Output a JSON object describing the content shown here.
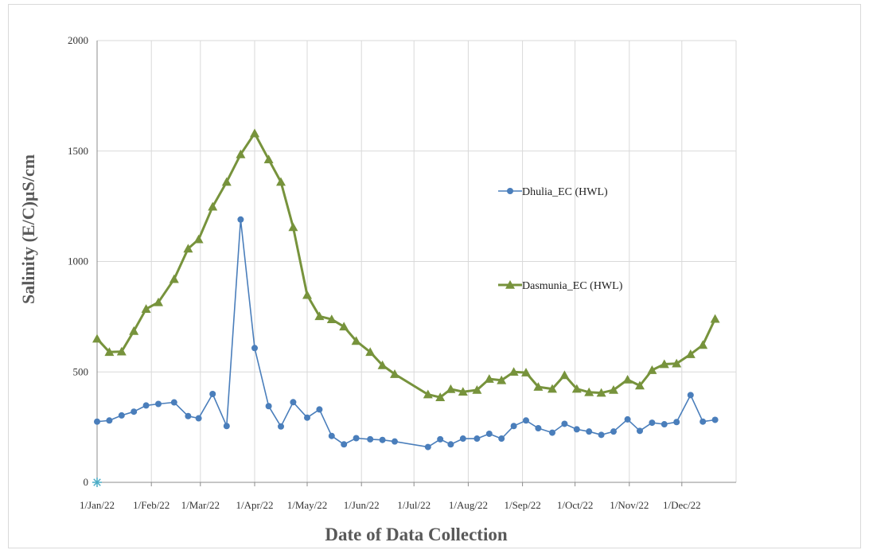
{
  "chart_data": {
    "type": "line",
    "xlabel": "Date of Data Collection",
    "ylabel": "Salinity (E/C)µS/cm",
    "ylim": [
      0,
      2000
    ],
    "yticks": [
      0,
      500,
      1000,
      1500,
      2000
    ],
    "xlim": [
      "2022-01-01",
      "2023-01-01"
    ],
    "x_tick_labels": [
      "1/Jan/22",
      "1/Feb/22",
      "1/Mar/22",
      "1/Apr/22",
      "1/May/22",
      "1/Jun/22",
      "1/Jul/22",
      "1/Aug/22",
      "1/Sep/22",
      "1/Oct/22",
      "1/Nov/22",
      "1/Dec/22"
    ],
    "x_tick_dates": [
      "2022-01-01",
      "2022-02-01",
      "2022-03-01",
      "2022-04-01",
      "2022-05-01",
      "2022-06-01",
      "2022-07-01",
      "2022-08-01",
      "2022-09-01",
      "2022-10-01",
      "2022-11-01",
      "2022-12-01"
    ],
    "grid": true,
    "legend": "right",
    "series": [
      {
        "name": "Dhulia_EC (HWL)",
        "color": "#4a7ebb",
        "marker": "circle",
        "points": [
          [
            "2022-01-01",
            275
          ],
          [
            "2022-01-08",
            280
          ],
          [
            "2022-01-15",
            303
          ],
          [
            "2022-01-22",
            320
          ],
          [
            "2022-01-29",
            348
          ],
          [
            "2022-02-05",
            355
          ],
          [
            "2022-02-14",
            362
          ],
          [
            "2022-02-22",
            300
          ],
          [
            "2022-02-28",
            290
          ],
          [
            "2022-03-08",
            400
          ],
          [
            "2022-03-16",
            255
          ],
          [
            "2022-03-24",
            1190
          ],
          [
            "2022-04-01",
            608
          ],
          [
            "2022-04-09",
            345
          ],
          [
            "2022-04-16",
            253
          ],
          [
            "2022-04-23",
            363
          ],
          [
            "2022-05-01",
            293
          ],
          [
            "2022-05-08",
            330
          ],
          [
            "2022-05-15",
            210
          ],
          [
            "2022-05-22",
            172
          ],
          [
            "2022-05-29",
            200
          ],
          [
            "2022-06-06",
            195
          ],
          [
            "2022-06-13",
            192
          ],
          [
            "2022-06-20",
            185
          ],
          [
            "2022-07-09",
            160
          ],
          [
            "2022-07-16",
            195
          ],
          [
            "2022-07-22",
            172
          ],
          [
            "2022-07-29",
            198
          ],
          [
            "2022-08-06",
            198
          ],
          [
            "2022-08-13",
            220
          ],
          [
            "2022-08-20",
            198
          ],
          [
            "2022-08-27",
            255
          ],
          [
            "2022-09-03",
            280
          ],
          [
            "2022-09-10",
            245
          ],
          [
            "2022-09-18",
            225
          ],
          [
            "2022-09-25",
            265
          ],
          [
            "2022-10-02",
            240
          ],
          [
            "2022-10-09",
            230
          ],
          [
            "2022-10-16",
            215
          ],
          [
            "2022-10-23",
            230
          ],
          [
            "2022-10-31",
            285
          ],
          [
            "2022-11-07",
            233
          ],
          [
            "2022-11-14",
            270
          ],
          [
            "2022-11-21",
            263
          ],
          [
            "2022-11-28",
            273
          ],
          [
            "2022-12-06",
            395
          ],
          [
            "2022-12-13",
            275
          ],
          [
            "2022-12-20",
            283
          ]
        ]
      },
      {
        "name": "Dasmunia_EC (HWL)",
        "color": "#77933c",
        "marker": "triangle",
        "points": [
          [
            "2022-01-01",
            650
          ],
          [
            "2022-01-08",
            590
          ],
          [
            "2022-01-15",
            592
          ],
          [
            "2022-01-22",
            685
          ],
          [
            "2022-01-29",
            785
          ],
          [
            "2022-02-05",
            815
          ],
          [
            "2022-02-14",
            920
          ],
          [
            "2022-02-22",
            1058
          ],
          [
            "2022-02-28",
            1100
          ],
          [
            "2022-03-08",
            1248
          ],
          [
            "2022-03-16",
            1360
          ],
          [
            "2022-03-24",
            1485
          ],
          [
            "2022-04-01",
            1580
          ],
          [
            "2022-04-09",
            1462
          ],
          [
            "2022-04-16",
            1360
          ],
          [
            "2022-04-23",
            1155
          ],
          [
            "2022-05-01",
            848
          ],
          [
            "2022-05-08",
            752
          ],
          [
            "2022-05-15",
            738
          ],
          [
            "2022-05-22",
            705
          ],
          [
            "2022-05-29",
            640
          ],
          [
            "2022-06-06",
            590
          ],
          [
            "2022-06-13",
            530
          ],
          [
            "2022-06-20",
            490
          ],
          [
            "2022-07-09",
            398
          ],
          [
            "2022-07-16",
            385
          ],
          [
            "2022-07-22",
            422
          ],
          [
            "2022-07-29",
            410
          ],
          [
            "2022-08-06",
            418
          ],
          [
            "2022-08-13",
            468
          ],
          [
            "2022-08-20",
            462
          ],
          [
            "2022-08-27",
            500
          ],
          [
            "2022-09-03",
            497
          ],
          [
            "2022-09-10",
            432
          ],
          [
            "2022-09-18",
            423
          ],
          [
            "2022-09-25",
            485
          ],
          [
            "2022-10-02",
            423
          ],
          [
            "2022-10-09",
            408
          ],
          [
            "2022-10-16",
            405
          ],
          [
            "2022-10-23",
            418
          ],
          [
            "2022-10-31",
            465
          ],
          [
            "2022-11-07",
            438
          ],
          [
            "2022-11-14",
            508
          ],
          [
            "2022-11-21",
            535
          ],
          [
            "2022-11-28",
            538
          ],
          [
            "2022-12-06",
            580
          ],
          [
            "2022-12-13",
            622
          ],
          [
            "2022-12-20",
            740
          ]
        ]
      }
    ],
    "extra_markers": [
      {
        "date": "2022-01-01",
        "value": 0,
        "color": "#4bacc6",
        "marker": "star"
      }
    ]
  }
}
